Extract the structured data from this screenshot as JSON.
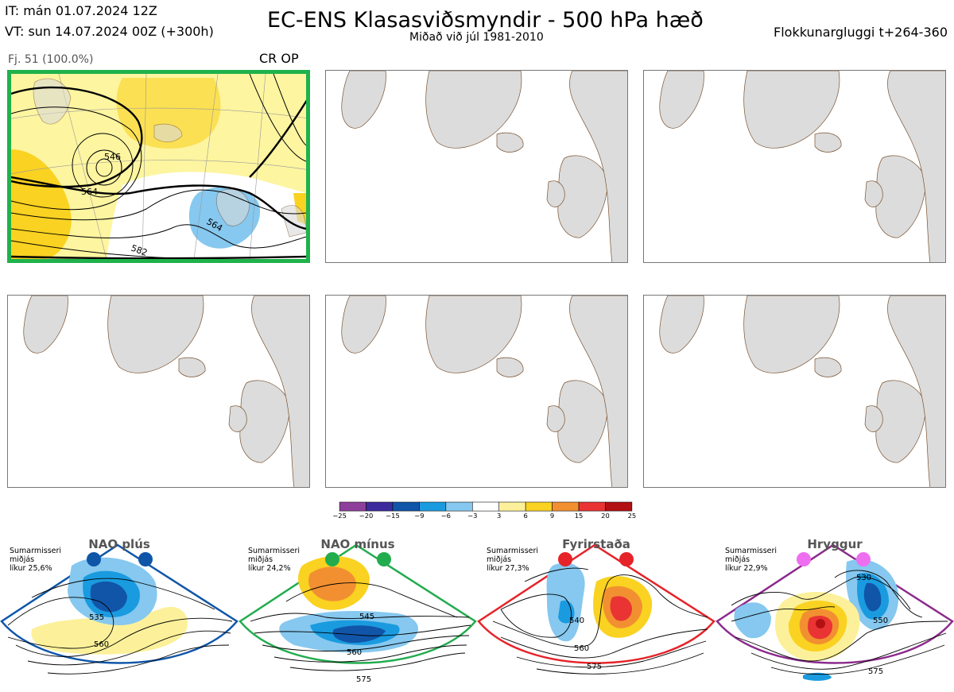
{
  "header": {
    "it": "IT: mán 01.07.2024 12Z",
    "vt": "VT: sun 14.07.2024 00Z  (+300h)",
    "title": "EC-ENS Klasasviðsmyndir - 500 hPa hæð",
    "subtitle": "Miðað við júl 1981-2010",
    "window": "Flokkunargluggi t+264-360"
  },
  "cluster1": {
    "fj": "Fj. 51 (100.0%)",
    "label": "CR OP",
    "contours": [
      "546",
      "564",
      "564",
      "582"
    ],
    "highlight_color": "#1fb24b"
  },
  "chart_data": {
    "type": "heatmap",
    "title": "EC-ENS Klasasviðsmyndir - 500 hPa hæð",
    "colorbar": {
      "ticks": [
        "−25",
        "−20",
        "−15",
        "−9",
        "−6",
        "−3",
        "3",
        "6",
        "9",
        "15",
        "20",
        "25"
      ],
      "colors": [
        "#8e3f9c",
        "#3d2b9e",
        "#1155a8",
        "#1a9be0",
        "#86c8ef",
        "#ffffff",
        "#fcf19a",
        "#fad221",
        "#f29031",
        "#ea3333",
        "#b31014"
      ]
    },
    "regimes": [
      {
        "name": "NAO plús",
        "info": "Sumarmisseri\nmiðjás\nlíkur 25,6%",
        "color": "#0f56a8",
        "contours": [
          "535",
          "560"
        ]
      },
      {
        "name": "NAO mínus",
        "info": "Sumarmisseri\nmiðjás\nlíkur 24,2%",
        "color": "#22ac4e",
        "contours": [
          "545",
          "560",
          "575"
        ]
      },
      {
        "name": "Fyrirstaða",
        "info": "Sumarmisseri\nmiðjás\nlíkur 27,3%",
        "color": "#e52329",
        "contours": [
          "540",
          "560",
          "575"
        ]
      },
      {
        "name": "Hryggur",
        "info": "Sumarmisseri\nmiðjás\nlíkur 22,9%",
        "color": "#8b2a8c",
        "contours": [
          "530",
          "550",
          "575"
        ]
      }
    ]
  }
}
